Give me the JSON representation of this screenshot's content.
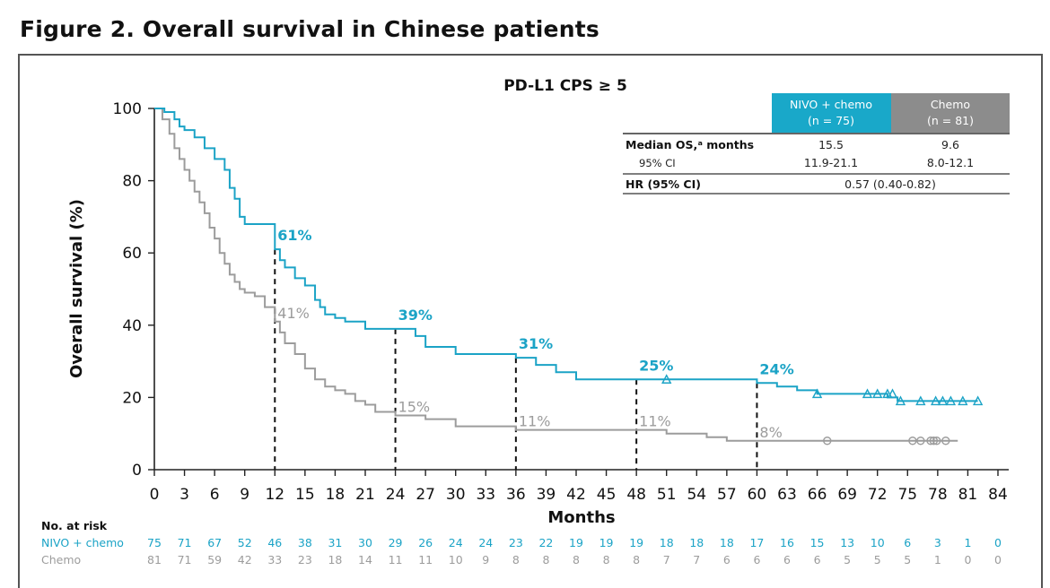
{
  "figure_title": "Figure 2. Overall survival in Chinese patients",
  "colors": {
    "nivo": "#1ba3c6",
    "chemo": "#9c9c9c",
    "header_nivo": "#19a8c9",
    "header_chemo": "#8c8c8c"
  },
  "legend_table": {
    "col_nivo_line1": "NIVO + chemo",
    "col_nivo_line2": "(n = 75)",
    "col_chemo_line1": "Chemo",
    "col_chemo_line2": "(n = 81)",
    "row1_label": "Median OS,ᵃ months",
    "row1_nivo": "15.5",
    "row1_chemo": "9.6",
    "row2_label": "95% CI",
    "row2_nivo": "11.9-21.1",
    "row2_chemo": "8.0-12.1",
    "row3_label": "HR (95% CI)",
    "row3_value": "0.57 (0.40-0.82)"
  },
  "chart_data": {
    "type": "line",
    "subtitle": "PD-L1 CPS ≥ 5",
    "xlabel": "Months",
    "ylabel": "Overall survival (%)",
    "xlim": [
      0,
      84
    ],
    "ylim": [
      0,
      100
    ],
    "x_ticks": [
      0,
      3,
      6,
      9,
      12,
      15,
      18,
      21,
      24,
      27,
      30,
      33,
      36,
      39,
      42,
      45,
      48,
      51,
      54,
      57,
      60,
      63,
      66,
      69,
      72,
      75,
      78,
      81,
      84
    ],
    "y_ticks": [
      0,
      20,
      40,
      60,
      80,
      100
    ],
    "series": [
      {
        "name": "NIVO + chemo",
        "key": "nivo",
        "x": [
          0,
          1,
          2,
          2.5,
          3,
          4,
          5,
          6,
          7,
          7.5,
          8,
          8.5,
          9,
          10,
          12,
          12.5,
          13,
          14,
          15,
          16,
          16.5,
          17,
          18,
          19,
          21,
          24,
          26,
          27,
          30,
          33,
          36,
          38,
          40,
          42,
          48,
          51,
          54,
          58,
          60,
          62,
          64,
          66,
          70,
          72,
          73,
          74,
          76,
          80,
          82
        ],
        "values": [
          100,
          99,
          97,
          95,
          94,
          92,
          89,
          86,
          83,
          78,
          75,
          70,
          68,
          68,
          61,
          58,
          56,
          53,
          51,
          47,
          45,
          43,
          42,
          41,
          39,
          39,
          37,
          34,
          32,
          32,
          31,
          29,
          27,
          25,
          25,
          25,
          25,
          25,
          24,
          23,
          22,
          21,
          21,
          21,
          20,
          19,
          19,
          19,
          19
        ]
      },
      {
        "name": "Chemo",
        "key": "chemo",
        "x": [
          0,
          0.8,
          1.5,
          2,
          2.5,
          3,
          3.5,
          4,
          4.5,
          5,
          5.5,
          6,
          6.5,
          7,
          7.5,
          8,
          8.5,
          9,
          10,
          11,
          12,
          12.5,
          13,
          14,
          15,
          16,
          17,
          18,
          19,
          20,
          21,
          22,
          24,
          27,
          30,
          36,
          42,
          48,
          51,
          55,
          57,
          60,
          66,
          80
        ],
        "values": [
          100,
          97,
          93,
          89,
          86,
          83,
          80,
          77,
          74,
          71,
          67,
          64,
          60,
          57,
          54,
          52,
          50,
          49,
          48,
          45,
          41,
          38,
          35,
          32,
          28,
          25,
          23,
          22,
          21,
          19,
          18,
          16,
          15,
          14,
          12,
          11,
          11,
          11,
          10,
          9,
          8,
          8,
          8,
          8
        ]
      }
    ],
    "censor_nivo": [
      51,
      66,
      71,
      72,
      73,
      73.5,
      74.3,
      76.3,
      77.8,
      78.5,
      79.3,
      80.5,
      82
    ],
    "censor_nivo_y": [
      25,
      21,
      21,
      21,
      21,
      21,
      19,
      19,
      19,
      19,
      19,
      19,
      19
    ],
    "censor_chemo": [
      67,
      75.5,
      76.3,
      77.3,
      77.6,
      77.9,
      78.8
    ],
    "censor_chemo_y": [
      8,
      8,
      8,
      8,
      8,
      8,
      8
    ],
    "milestones": [
      {
        "month": 12,
        "nivo": 61,
        "chemo": 41,
        "nivo_label": "61%",
        "chemo_label": "41%"
      },
      {
        "month": 24,
        "nivo": 39,
        "chemo": 15,
        "nivo_label": "39%",
        "chemo_label": "15%"
      },
      {
        "month": 36,
        "nivo": 31,
        "chemo": 11,
        "nivo_label": "31%",
        "chemo_label": "11%"
      },
      {
        "month": 48,
        "nivo": 25,
        "chemo": 11,
        "nivo_label": "25%",
        "chemo_label": "11%"
      },
      {
        "month": 60,
        "nivo": 24,
        "chemo": 8,
        "nivo_label": "24%",
        "chemo_label": "8%"
      }
    ],
    "risk_table": {
      "title": "No. at risk",
      "nivo_label": "NIVO + chemo",
      "chemo_label": "Chemo",
      "nivo": [
        75,
        71,
        67,
        52,
        46,
        38,
        31,
        30,
        29,
        26,
        24,
        24,
        23,
        22,
        19,
        19,
        19,
        18,
        18,
        18,
        17,
        16,
        15,
        13,
        10,
        6,
        3,
        1,
        0
      ],
      "chemo": [
        81,
        71,
        59,
        42,
        33,
        23,
        18,
        14,
        11,
        11,
        10,
        9,
        8,
        8,
        8,
        8,
        8,
        7,
        7,
        6,
        6,
        6,
        6,
        5,
        5,
        5,
        1,
        0,
        0
      ]
    }
  }
}
